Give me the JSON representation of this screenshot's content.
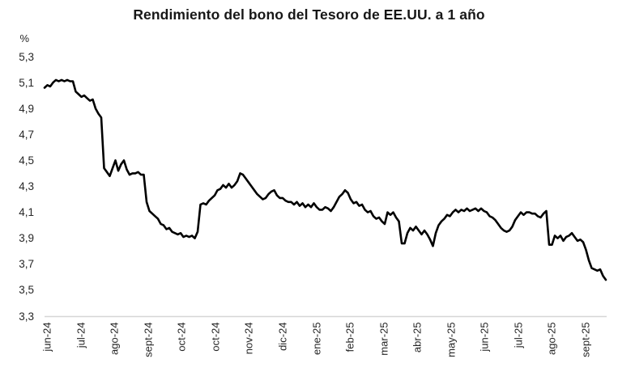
{
  "chart_data": {
    "type": "line",
    "title": "Rendimiento del bono del Tesoro de EE.UU. a 1 año",
    "ylabel": "%",
    "ylim": [
      3.3,
      5.3
    ],
    "grid": false,
    "legend": false,
    "ytick_values": [
      5.3,
      5.1,
      4.9,
      4.7,
      4.5,
      4.3,
      4.1,
      3.9,
      3.7,
      3.5,
      3.3
    ],
    "ytick_labels": [
      "5,3",
      "5,1",
      "4,9",
      "4,7",
      "4,5",
      "4,3",
      "4,1",
      "3,9",
      "3,7",
      "3,5",
      "3,3"
    ],
    "xtick_labels": [
      "jun-24",
      "jul-24",
      "ago-24",
      "sept-24",
      "oct-24",
      "oct-24",
      "nov-24",
      "dic-24",
      "ene-25",
      "feb-25",
      "mar-25",
      "abr-25",
      "may-25",
      "jun-25",
      "jul-25",
      "ago-25",
      "sept-25"
    ],
    "axis_color": "#d6d6d6",
    "series": [
      {
        "name": "Rendimiento del bono del Tesoro de EE.UU. a 1 año",
        "color": "#000000",
        "values": [
          5.06,
          5.08,
          5.07,
          5.1,
          5.12,
          5.11,
          5.12,
          5.11,
          5.12,
          5.11,
          5.11,
          5.03,
          5.01,
          4.99,
          5.0,
          4.98,
          4.96,
          4.97,
          4.9,
          4.86,
          4.83,
          4.44,
          4.41,
          4.38,
          4.44,
          4.5,
          4.42,
          4.47,
          4.5,
          4.43,
          4.39,
          4.4,
          4.4,
          4.41,
          4.39,
          4.39,
          4.18,
          4.11,
          4.09,
          4.07,
          4.05,
          4.01,
          4.0,
          3.97,
          3.98,
          3.95,
          3.94,
          3.93,
          3.94,
          3.91,
          3.92,
          3.91,
          3.92,
          3.9,
          3.95,
          4.16,
          4.17,
          4.16,
          4.19,
          4.21,
          4.23,
          4.27,
          4.28,
          4.31,
          4.29,
          4.32,
          4.29,
          4.31,
          4.34,
          4.4,
          4.39,
          4.36,
          4.33,
          4.3,
          4.27,
          4.24,
          4.22,
          4.2,
          4.21,
          4.24,
          4.26,
          4.27,
          4.23,
          4.21,
          4.21,
          4.19,
          4.18,
          4.18,
          4.16,
          4.18,
          4.15,
          4.17,
          4.14,
          4.16,
          4.14,
          4.17,
          4.14,
          4.12,
          4.12,
          4.14,
          4.13,
          4.11,
          4.14,
          4.18,
          4.22,
          4.24,
          4.27,
          4.25,
          4.2,
          4.17,
          4.18,
          4.15,
          4.16,
          4.12,
          4.1,
          4.11,
          4.07,
          4.05,
          4.06,
          4.03,
          4.01,
          4.1,
          4.08,
          4.1,
          4.06,
          4.03,
          3.86,
          3.86,
          3.94,
          3.98,
          3.96,
          3.99,
          3.96,
          3.93,
          3.96,
          3.93,
          3.89,
          3.84,
          3.94,
          4.0,
          4.03,
          4.05,
          4.08,
          4.07,
          4.1,
          4.12,
          4.1,
          4.12,
          4.11,
          4.13,
          4.11,
          4.12,
          4.13,
          4.11,
          4.13,
          4.11,
          4.1,
          4.07,
          4.06,
          4.04,
          4.01,
          3.98,
          3.96,
          3.95,
          3.96,
          3.99,
          4.04,
          4.07,
          4.1,
          4.08,
          4.1,
          4.1,
          4.09,
          4.09,
          4.07,
          4.06,
          4.09,
          4.11,
          3.85,
          3.85,
          3.92,
          3.9,
          3.92,
          3.88,
          3.91,
          3.92,
          3.94,
          3.91,
          3.88,
          3.89,
          3.87,
          3.81,
          3.73,
          3.67,
          3.66,
          3.65,
          3.66,
          3.61,
          3.58
        ]
      }
    ]
  }
}
